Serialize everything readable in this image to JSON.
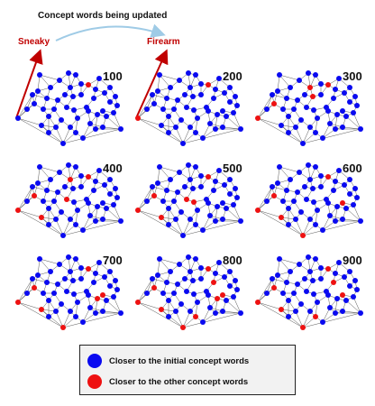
{
  "header": {
    "title": "Concept words being updated"
  },
  "words": {
    "left": "Sneaky",
    "right": "Firearm"
  },
  "panels": [
    {
      "step": "100",
      "red": [
        5
      ]
    },
    {
      "step": "200",
      "red": [
        0,
        5
      ]
    },
    {
      "step": "300",
      "red": [
        0,
        5,
        1,
        9,
        10
      ]
    },
    {
      "step": "400",
      "red": [
        0,
        5,
        1,
        9,
        2,
        11
      ]
    },
    {
      "step": "500",
      "red": [
        0,
        5,
        1,
        2,
        11,
        12
      ]
    },
    {
      "step": "600",
      "red": [
        0,
        5,
        1,
        2,
        3,
        13
      ]
    },
    {
      "step": "700",
      "red": [
        0,
        5,
        1,
        2,
        3,
        13,
        14
      ]
    },
    {
      "step": "800",
      "red": [
        0,
        5,
        1,
        2,
        3,
        4,
        13,
        14,
        15
      ]
    },
    {
      "step": "900",
      "red": [
        0,
        5,
        1,
        2,
        3,
        4,
        13,
        15
      ]
    }
  ],
  "legend": {
    "items": [
      {
        "label": "Closer to the initial concept words",
        "color": "#0a0af0"
      },
      {
        "label": "Closer to the other concept words",
        "color": "#ee1111"
      }
    ]
  },
  "colors": {
    "blue": "#0a0af0",
    "red": "#ee1111",
    "arrow": "#c00000",
    "curve": "#9fcbe6"
  }
}
